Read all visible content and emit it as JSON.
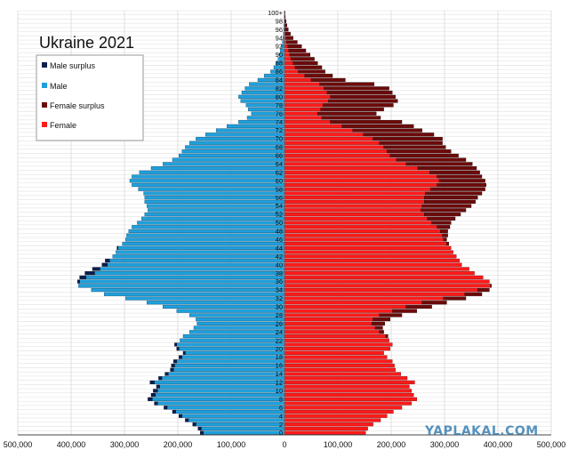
{
  "chart_data": {
    "type": "bar",
    "orientation": "horizontal",
    "title": "Ukraine 2021",
    "xlabel": "",
    "ylabel": "",
    "xlim": [
      -500000,
      500000
    ],
    "x_ticks": [
      "500,000",
      "400,000",
      "300,000",
      "200,000",
      "100,000",
      "0",
      "100,000",
      "200,000",
      "300,000",
      "400,000",
      "500,000"
    ],
    "age_tick_labels": [
      "0",
      "2",
      "4",
      "6",
      "8",
      "10",
      "12",
      "14",
      "16",
      "18",
      "20",
      "22",
      "24",
      "26",
      "28",
      "30",
      "32",
      "34",
      "36",
      "38",
      "40",
      "42",
      "44",
      "46",
      "48",
      "50",
      "52",
      "54",
      "56",
      "58",
      "60",
      "62",
      "64",
      "66",
      "68",
      "70",
      "72",
      "74",
      "76",
      "78",
      "80",
      "82",
      "84",
      "86",
      "88",
      "90",
      "92",
      "94",
      "96",
      "98",
      "100+"
    ],
    "ages": [
      "0",
      "1",
      "2",
      "3",
      "4",
      "5",
      "6",
      "7",
      "8",
      "9",
      "10",
      "11",
      "12",
      "13",
      "14",
      "15",
      "16",
      "17",
      "18",
      "19",
      "20",
      "21",
      "22",
      "23",
      "24",
      "25",
      "26",
      "27",
      "28",
      "29",
      "30",
      "31",
      "32",
      "33",
      "34",
      "35",
      "36",
      "37",
      "38",
      "39",
      "40",
      "41",
      "42",
      "43",
      "44",
      "45",
      "46",
      "47",
      "48",
      "49",
      "50",
      "51",
      "52",
      "53",
      "54",
      "55",
      "56",
      "57",
      "58",
      "59",
      "60",
      "61",
      "62",
      "63",
      "64",
      "65",
      "66",
      "67",
      "68",
      "69",
      "70",
      "71",
      "72",
      "73",
      "74",
      "75",
      "76",
      "77",
      "78",
      "79",
      "80",
      "81",
      "82",
      "83",
      "84",
      "85",
      "86",
      "87",
      "88",
      "89",
      "90",
      "91",
      "92",
      "93",
      "94",
      "95",
      "96",
      "97",
      "98",
      "99",
      "100+"
    ],
    "series": [
      {
        "name": "Male surplus",
        "color": "#0a1f4f"
      },
      {
        "name": "Male",
        "color": "#1ea0dc"
      },
      {
        "name": "Female surplus",
        "color": "#6e0a0a"
      },
      {
        "name": "Female",
        "color": "#ff1a1a"
      }
    ],
    "male": [
      158000,
      162000,
      172000,
      186000,
      198000,
      210000,
      226000,
      244000,
      256000,
      250000,
      246000,
      240000,
      252000,
      236000,
      224000,
      214000,
      212000,
      208000,
      198000,
      190000,
      202000,
      206000,
      196000,
      190000,
      178000,
      170000,
      164000,
      166000,
      178000,
      202000,
      228000,
      258000,
      298000,
      338000,
      362000,
      386000,
      388000,
      384000,
      374000,
      360000,
      342000,
      336000,
      322000,
      316000,
      314000,
      304000,
      298000,
      296000,
      292000,
      286000,
      276000,
      268000,
      262000,
      256000,
      258000,
      262000,
      262000,
      264000,
      274000,
      286000,
      290000,
      286000,
      272000,
      250000,
      228000,
      210000,
      198000,
      192000,
      186000,
      178000,
      166000,
      148000,
      128000,
      108000,
      86000,
      70000,
      62000,
      68000,
      72000,
      82000,
      86000,
      80000,
      74000,
      66000,
      50000,
      38000,
      26000,
      20000,
      16000,
      12000,
      10000,
      8000,
      6000,
      4000,
      3000,
      2000,
      1500,
      1000,
      700,
      400,
      300
    ],
    "female": [
      152000,
      156000,
      166000,
      180000,
      192000,
      204000,
      220000,
      238000,
      248000,
      242000,
      238000,
      234000,
      244000,
      230000,
      218000,
      208000,
      206000,
      202000,
      192000,
      186000,
      198000,
      202000,
      196000,
      194000,
      186000,
      184000,
      188000,
      198000,
      220000,
      248000,
      276000,
      304000,
      340000,
      370000,
      384000,
      388000,
      384000,
      372000,
      356000,
      346000,
      332000,
      328000,
      322000,
      316000,
      312000,
      308000,
      304000,
      306000,
      306000,
      310000,
      312000,
      320000,
      330000,
      340000,
      350000,
      358000,
      362000,
      370000,
      376000,
      378000,
      376000,
      370000,
      366000,
      360000,
      352000,
      340000,
      326000,
      312000,
      302000,
      296000,
      296000,
      280000,
      258000,
      242000,
      220000,
      180000,
      172000,
      186000,
      204000,
      212000,
      208000,
      202000,
      196000,
      168000,
      114000,
      90000,
      76000,
      70000,
      62000,
      56000,
      48000,
      40000,
      32000,
      24000,
      16000,
      11000,
      7000,
      4500,
      3000,
      1500,
      1000
    ]
  },
  "watermark": "YAPLAKAL.COM"
}
